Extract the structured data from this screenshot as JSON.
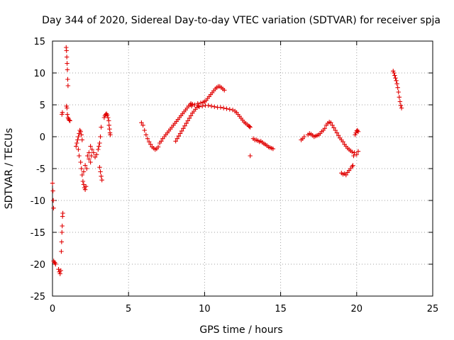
{
  "chart_data": {
    "type": "scatter",
    "title": "Day 344 of 2020, Sidereal Day-to-day VTEC variation (SDTVAR) for receiver spja",
    "xlabel": "GPS time / hours",
    "ylabel": "SDTVAR / TECUs",
    "xlim": [
      0,
      25
    ],
    "ylim": [
      -25,
      15
    ],
    "xticks": [
      "0",
      "5",
      "10",
      "15",
      "20",
      "25"
    ],
    "yticks": [
      "15",
      "10",
      "5",
      "0",
      "-5",
      "-10",
      "-15",
      "-20",
      "-25"
    ],
    "grid": true,
    "marker": "plus",
    "colors": {
      "series": "#e00000",
      "grid": "#a0a0a0",
      "axis": "#000000"
    },
    "series": [
      {
        "name": "SDTVAR",
        "points": [
          [
            0.0,
            -7.3
          ],
          [
            0.03,
            -8.5
          ],
          [
            0.05,
            -10.0
          ],
          [
            0.07,
            -11.2
          ],
          [
            0.08,
            -19.5
          ],
          [
            0.12,
            -19.7
          ],
          [
            0.16,
            -19.8
          ],
          [
            0.2,
            -20.0
          ],
          [
            0.4,
            -20.8
          ],
          [
            0.45,
            -21.2
          ],
          [
            0.5,
            -21.5
          ],
          [
            0.55,
            -21.0
          ],
          [
            0.58,
            -18.0
          ],
          [
            0.6,
            -16.5
          ],
          [
            0.62,
            -15.0
          ],
          [
            0.64,
            -14.0
          ],
          [
            0.66,
            -12.5
          ],
          [
            0.68,
            -12.0
          ],
          [
            0.62,
            3.5
          ],
          [
            0.65,
            3.8
          ],
          [
            0.9,
            14.0
          ],
          [
            0.92,
            13.5
          ],
          [
            0.94,
            12.5
          ],
          [
            0.96,
            11.5
          ],
          [
            0.98,
            10.5
          ],
          [
            1.0,
            9.0
          ],
          [
            1.02,
            8.0
          ],
          [
            0.92,
            4.8
          ],
          [
            0.95,
            4.5
          ],
          [
            0.98,
            3.5
          ],
          [
            1.02,
            3.0
          ],
          [
            1.05,
            2.8
          ],
          [
            1.1,
            2.6
          ],
          [
            1.15,
            2.5
          ],
          [
            1.55,
            -1.5
          ],
          [
            1.6,
            -1.0
          ],
          [
            1.65,
            -0.5
          ],
          [
            1.7,
            0.0
          ],
          [
            1.75,
            0.5
          ],
          [
            1.8,
            1.0
          ],
          [
            1.85,
            0.8
          ],
          [
            1.9,
            0.3
          ],
          [
            1.95,
            -0.5
          ],
          [
            1.7,
            -2.0
          ],
          [
            1.75,
            -3.0
          ],
          [
            1.85,
            -4.0
          ],
          [
            1.9,
            -5.0
          ],
          [
            1.95,
            -6.0
          ],
          [
            2.0,
            -7.0
          ],
          [
            2.05,
            -7.5
          ],
          [
            2.1,
            -8.0
          ],
          [
            2.15,
            -8.3
          ],
          [
            2.2,
            -7.8
          ],
          [
            2.05,
            -5.5
          ],
          [
            2.15,
            -4.5
          ],
          [
            2.25,
            -5.0
          ],
          [
            2.3,
            -3.0
          ],
          [
            2.4,
            -2.5
          ],
          [
            2.5,
            -1.5
          ],
          [
            2.55,
            -3.0
          ],
          [
            2.6,
            -2.0
          ],
          [
            2.7,
            -2.5
          ],
          [
            2.8,
            -3.2
          ],
          [
            2.9,
            -2.8
          ],
          [
            3.0,
            -2.0
          ],
          [
            3.05,
            -1.5
          ],
          [
            3.1,
            -1.0
          ],
          [
            3.15,
            0.0
          ],
          [
            3.2,
            1.5
          ],
          [
            2.4,
            -3.5
          ],
          [
            2.5,
            -4.0
          ],
          [
            3.1,
            -4.8
          ],
          [
            3.15,
            -5.5
          ],
          [
            3.2,
            -6.2
          ],
          [
            3.25,
            -6.8
          ],
          [
            3.4,
            3.0
          ],
          [
            3.45,
            3.3
          ],
          [
            3.5,
            3.5
          ],
          [
            3.55,
            3.6
          ],
          [
            3.6,
            3.4
          ],
          [
            3.65,
            3.0
          ],
          [
            3.7,
            2.5
          ],
          [
            3.72,
            1.8
          ],
          [
            3.75,
            1.2
          ],
          [
            3.78,
            0.6
          ],
          [
            3.8,
            0.3
          ],
          [
            5.85,
            2.2
          ],
          [
            5.95,
            1.8
          ],
          [
            6.05,
            1.0
          ],
          [
            6.15,
            0.3
          ],
          [
            6.25,
            -0.3
          ],
          [
            6.35,
            -0.8
          ],
          [
            6.45,
            -1.2
          ],
          [
            6.55,
            -1.6
          ],
          [
            6.65,
            -1.8
          ],
          [
            6.75,
            -2.0
          ],
          [
            6.85,
            -1.9
          ],
          [
            6.95,
            -1.6
          ],
          [
            7.05,
            -1.0
          ],
          [
            7.15,
            -0.7
          ],
          [
            7.25,
            -0.3
          ],
          [
            7.35,
            0.0
          ],
          [
            7.45,
            0.3
          ],
          [
            7.55,
            0.6
          ],
          [
            7.65,
            0.9
          ],
          [
            7.75,
            1.2
          ],
          [
            7.85,
            1.5
          ],
          [
            7.95,
            1.8
          ],
          [
            8.05,
            2.1
          ],
          [
            8.15,
            2.4
          ],
          [
            8.25,
            2.7
          ],
          [
            8.35,
            3.0
          ],
          [
            8.45,
            3.3
          ],
          [
            8.55,
            3.6
          ],
          [
            8.65,
            3.9
          ],
          [
            8.75,
            4.2
          ],
          [
            8.85,
            4.5
          ],
          [
            8.95,
            4.8
          ],
          [
            9.05,
            5.0
          ],
          [
            9.1,
            5.2
          ],
          [
            9.15,
            4.8
          ],
          [
            9.2,
            5.1
          ],
          [
            8.1,
            -0.7
          ],
          [
            8.2,
            -0.3
          ],
          [
            8.3,
            0.1
          ],
          [
            8.4,
            0.5
          ],
          [
            8.5,
            0.9
          ],
          [
            8.6,
            1.3
          ],
          [
            8.7,
            1.7
          ],
          [
            8.8,
            2.1
          ],
          [
            8.9,
            2.5
          ],
          [
            9.0,
            2.9
          ],
          [
            9.1,
            3.3
          ],
          [
            9.2,
            3.7
          ],
          [
            9.3,
            4.0
          ],
          [
            9.4,
            4.3
          ],
          [
            9.5,
            4.6
          ],
          [
            9.6,
            4.8
          ],
          [
            9.35,
            5.0
          ],
          [
            9.55,
            5.2
          ],
          [
            9.75,
            5.3
          ],
          [
            9.9,
            5.4
          ],
          [
            10.0,
            5.5
          ],
          [
            10.1,
            5.7
          ],
          [
            10.2,
            6.0
          ],
          [
            10.3,
            6.3
          ],
          [
            10.4,
            6.6
          ],
          [
            10.5,
            6.9
          ],
          [
            10.6,
            7.2
          ],
          [
            10.7,
            7.5
          ],
          [
            10.8,
            7.7
          ],
          [
            10.9,
            7.9
          ],
          [
            11.0,
            7.9
          ],
          [
            11.1,
            7.7
          ],
          [
            11.2,
            7.5
          ],
          [
            11.3,
            7.3
          ],
          [
            9.65,
            4.7
          ],
          [
            9.85,
            4.8
          ],
          [
            10.05,
            4.9
          ],
          [
            10.25,
            4.9
          ],
          [
            10.45,
            4.8
          ],
          [
            10.65,
            4.7
          ],
          [
            10.85,
            4.6
          ],
          [
            11.05,
            4.6
          ],
          [
            11.25,
            4.5
          ],
          [
            11.45,
            4.4
          ],
          [
            11.65,
            4.3
          ],
          [
            11.85,
            4.2
          ],
          [
            12.0,
            4.0
          ],
          [
            12.1,
            3.8
          ],
          [
            12.2,
            3.5
          ],
          [
            12.3,
            3.2
          ],
          [
            12.4,
            2.9
          ],
          [
            12.5,
            2.6
          ],
          [
            12.6,
            2.3
          ],
          [
            12.7,
            2.1
          ],
          [
            12.8,
            1.9
          ],
          [
            12.9,
            1.7
          ],
          [
            12.95,
            1.6
          ],
          [
            13.0,
            1.5
          ],
          [
            13.0,
            -3.0
          ],
          [
            13.2,
            -0.3
          ],
          [
            13.3,
            -0.5
          ],
          [
            13.4,
            -0.5
          ],
          [
            13.5,
            -0.6
          ],
          [
            13.6,
            -0.8
          ],
          [
            13.7,
            -0.7
          ],
          [
            13.8,
            -0.9
          ],
          [
            13.9,
            -1.1
          ],
          [
            14.0,
            -1.2
          ],
          [
            14.1,
            -1.4
          ],
          [
            14.2,
            -1.6
          ],
          [
            14.3,
            -1.7
          ],
          [
            14.4,
            -1.8
          ],
          [
            14.5,
            -1.9
          ],
          [
            16.35,
            -0.5
          ],
          [
            16.45,
            -0.3
          ],
          [
            16.55,
            0.0
          ],
          [
            16.8,
            0.3
          ],
          [
            16.9,
            0.5
          ],
          [
            17.0,
            0.4
          ],
          [
            17.1,
            0.2
          ],
          [
            17.2,
            0.0
          ],
          [
            17.3,
            0.1
          ],
          [
            17.4,
            0.2
          ],
          [
            17.5,
            0.3
          ],
          [
            17.6,
            0.5
          ],
          [
            17.7,
            0.8
          ],
          [
            17.8,
            1.0
          ],
          [
            17.9,
            1.3
          ],
          [
            18.0,
            1.8
          ],
          [
            18.1,
            2.1
          ],
          [
            18.2,
            2.3
          ],
          [
            18.3,
            2.2
          ],
          [
            18.4,
            1.8
          ],
          [
            18.5,
            1.4
          ],
          [
            18.6,
            1.0
          ],
          [
            18.7,
            0.6
          ],
          [
            18.8,
            0.2
          ],
          [
            18.9,
            -0.2
          ],
          [
            19.0,
            -0.5
          ],
          [
            19.1,
            -0.8
          ],
          [
            19.2,
            -1.2
          ],
          [
            19.3,
            -1.5
          ],
          [
            19.4,
            -1.8
          ],
          [
            19.5,
            -2.0
          ],
          [
            19.6,
            -2.2
          ],
          [
            19.7,
            -2.4
          ],
          [
            19.0,
            -5.7
          ],
          [
            19.1,
            -5.9
          ],
          [
            19.2,
            -5.8
          ],
          [
            19.3,
            -6.0
          ],
          [
            19.4,
            -5.6
          ],
          [
            19.5,
            -5.3
          ],
          [
            19.6,
            -5.0
          ],
          [
            19.7,
            -4.7
          ],
          [
            19.75,
            -4.5
          ],
          [
            19.8,
            -3.0
          ],
          [
            19.85,
            -2.5
          ],
          [
            19.9,
            0.3
          ],
          [
            19.95,
            0.6
          ],
          [
            20.0,
            0.9
          ],
          [
            20.05,
            1.0
          ],
          [
            20.1,
            0.8
          ],
          [
            20.0,
            -2.8
          ],
          [
            20.1,
            -2.3
          ],
          [
            22.4,
            10.3
          ],
          [
            22.45,
            10.0
          ],
          [
            22.5,
            9.6
          ],
          [
            22.55,
            9.2
          ],
          [
            22.6,
            8.8
          ],
          [
            22.65,
            8.3
          ],
          [
            22.7,
            7.7
          ],
          [
            22.75,
            7.0
          ],
          [
            22.8,
            6.2
          ],
          [
            22.85,
            5.5
          ],
          [
            22.9,
            4.9
          ],
          [
            22.95,
            4.5
          ]
        ]
      }
    ]
  }
}
